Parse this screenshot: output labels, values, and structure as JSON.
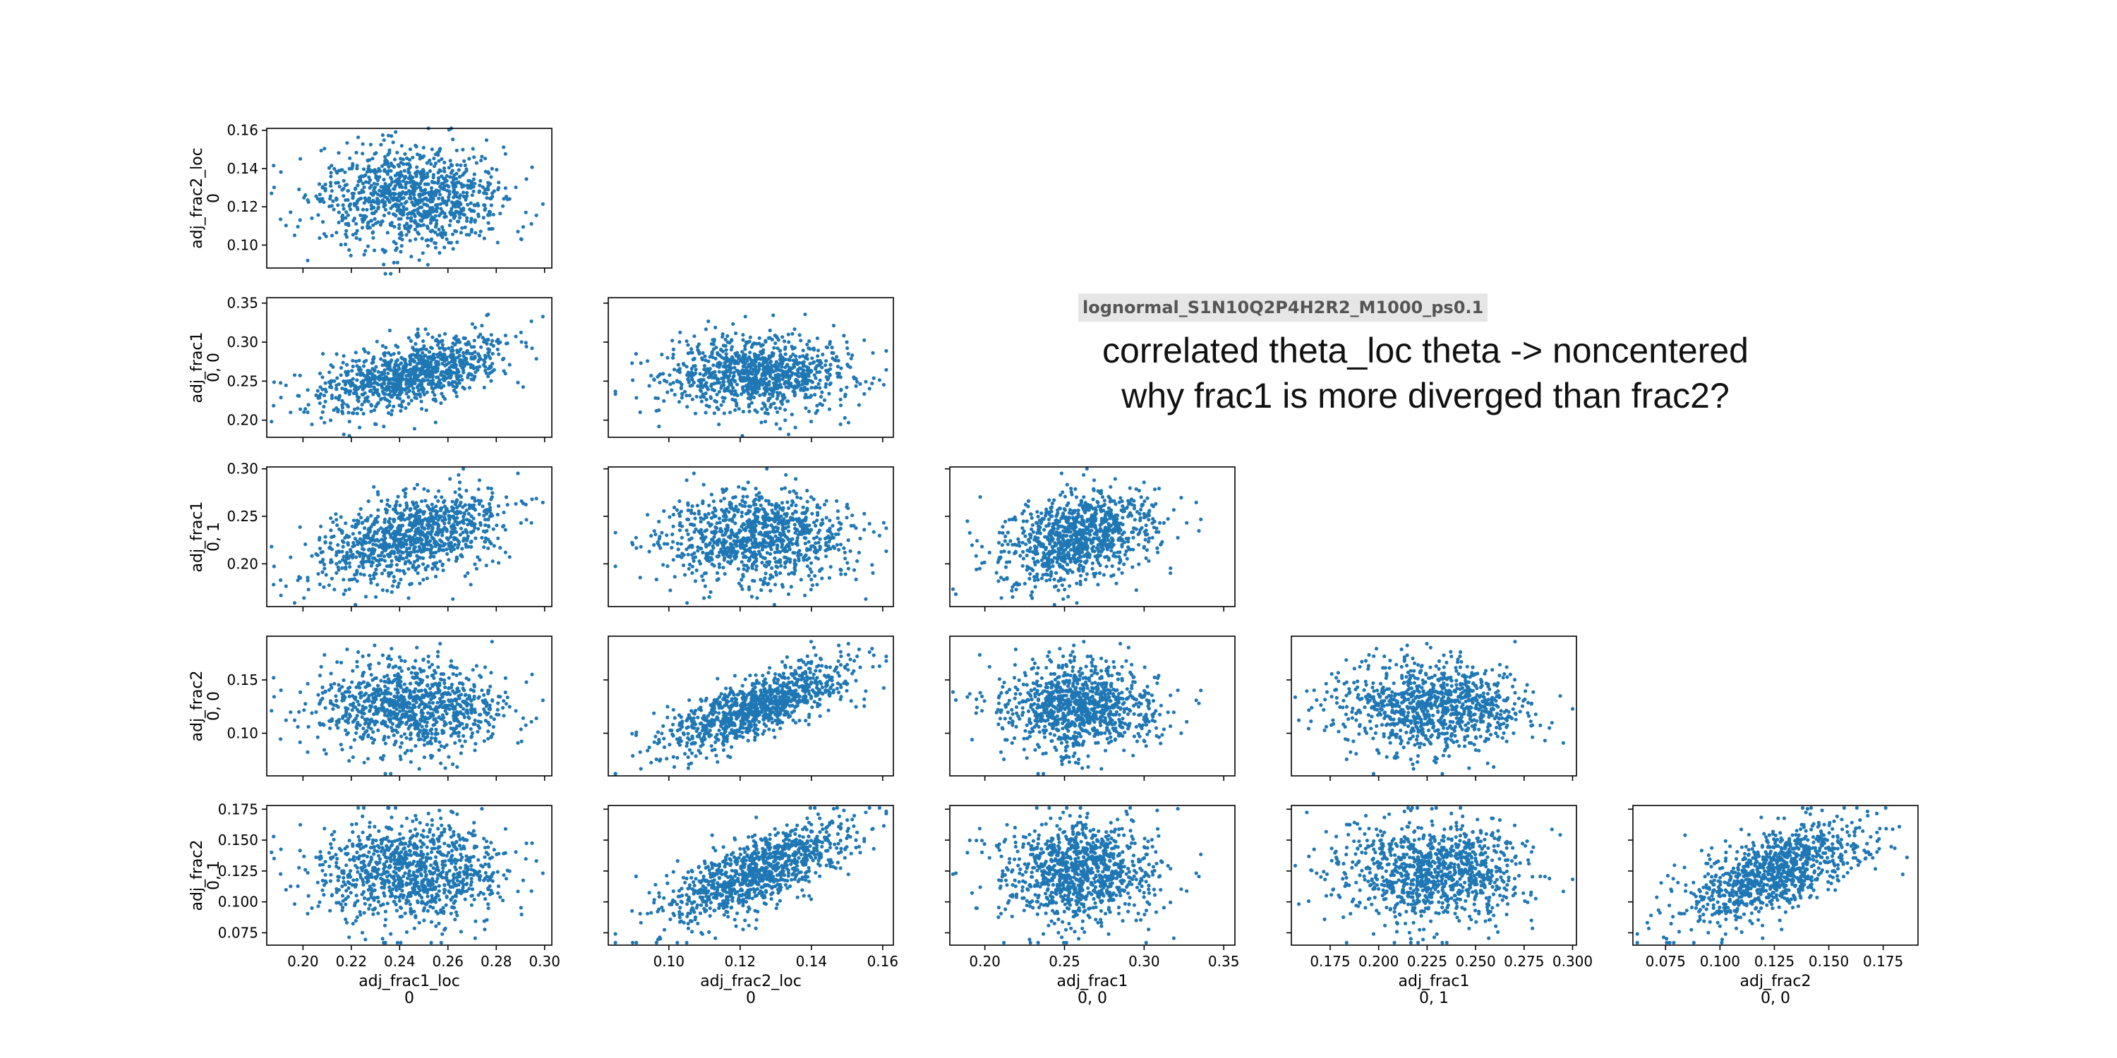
{
  "annotations": {
    "file_label": "lognormal_S1N10Q2P4H2R2_M1000_ps0.1",
    "note_line1": "correlated theta_loc theta -> noncentered",
    "note_line2": "why frac1 is more diverged than frac2?"
  },
  "colors": {
    "points": "#1f77b4",
    "axes": "#000000"
  },
  "chart_data": {
    "type": "scatter",
    "layout": "pair-grid-lower-triangle",
    "n_points": 1000,
    "variables": [
      {
        "name": "adj_frac1_loc",
        "index": "0",
        "lim": [
          0.185,
          0.303
        ],
        "ticks": [
          0.2,
          0.22,
          0.24,
          0.26,
          0.28,
          0.3
        ],
        "tick_labels": [
          "0.20",
          "0.22",
          "0.24",
          "0.26",
          "0.28",
          "0.30"
        ],
        "mean": 0.245,
        "sd": 0.019
      },
      {
        "name": "adj_frac2_loc",
        "index": "0",
        "lim": [
          0.083,
          0.163
        ],
        "ticks": [
          0.1,
          0.12,
          0.14,
          0.16
        ],
        "tick_labels": [
          "0.10",
          "0.12",
          "0.14",
          "0.16"
        ],
        "mean": 0.125,
        "sd": 0.013
      },
      {
        "name": "adj_frac1",
        "index": "0, 0",
        "lim": [
          0.178,
          0.357
        ],
        "ticks": [
          0.2,
          0.25,
          0.3,
          0.35
        ],
        "tick_labels": [
          "0.20",
          "0.25",
          "0.30",
          "0.35"
        ],
        "mean": 0.258,
        "sd": 0.024
      },
      {
        "name": "adj_frac1",
        "index": "0, 1",
        "lim": [
          0.155,
          0.302
        ],
        "ticks": [
          0.175,
          0.2,
          0.225,
          0.25,
          0.275,
          0.3
        ],
        "tick_labels": [
          "0.175",
          "0.200",
          "0.225",
          "0.250",
          "0.275",
          "0.300"
        ],
        "mean": 0.228,
        "sd": 0.024
      },
      {
        "name": "adj_frac2",
        "index": "0, 0",
        "lim": [
          0.06,
          0.191
        ],
        "ticks": [
          0.075,
          0.1,
          0.125,
          0.15,
          0.175
        ],
        "tick_labels": [
          "0.075",
          "0.100",
          "0.125",
          "0.150",
          "0.175"
        ],
        "mean": 0.125,
        "sd": 0.02
      },
      {
        "name": "adj_frac2",
        "index": "0, 1",
        "lim": [
          0.065,
          0.178
        ],
        "ticks": [
          0.075,
          0.1,
          0.125,
          0.15,
          0.175
        ],
        "tick_labels": [
          "0.075",
          "0.100",
          "0.125",
          "0.150",
          "0.175"
        ],
        "mean": 0.124,
        "sd": 0.02
      }
    ],
    "row_ylims": [
      {
        "var": 1,
        "lim": [
          0.088,
          0.161
        ],
        "ticks": [
          0.1,
          0.12,
          0.14,
          0.16
        ],
        "tick_labels": [
          "0.10",
          "0.12",
          "0.14",
          "0.16"
        ]
      },
      {
        "var": 2,
        "lim": [
          0.178,
          0.357
        ],
        "ticks": [
          0.2,
          0.25,
          0.3,
          0.35
        ],
        "tick_labels": [
          "0.20",
          "0.25",
          "0.30",
          "0.35"
        ]
      },
      {
        "var": 3,
        "lim": [
          0.155,
          0.302
        ],
        "ticks": [
          0.2,
          0.25,
          0.3
        ],
        "tick_labels": [
          "0.20",
          "0.25",
          "0.30"
        ]
      },
      {
        "var": 4,
        "lim": [
          0.06,
          0.191
        ],
        "ticks": [
          0.1,
          0.15
        ],
        "tick_labels": [
          "0.10",
          "0.15"
        ]
      },
      {
        "var": 5,
        "lim": [
          0.065,
          0.178
        ],
        "ticks": [
          0.075,
          0.1,
          0.125,
          0.15,
          0.175
        ],
        "tick_labels": [
          "0.075",
          "0.100",
          "0.125",
          "0.150",
          "0.175"
        ]
      }
    ],
    "pairs": [
      {
        "row": 0,
        "col": 0,
        "x": 0,
        "y": 1,
        "corr": 0.0
      },
      {
        "row": 1,
        "col": 0,
        "x": 0,
        "y": 2,
        "corr": 0.55
      },
      {
        "row": 1,
        "col": 1,
        "x": 1,
        "y": 2,
        "corr": -0.05
      },
      {
        "row": 2,
        "col": 0,
        "x": 0,
        "y": 3,
        "corr": 0.5
      },
      {
        "row": 2,
        "col": 1,
        "x": 1,
        "y": 3,
        "corr": 0.0
      },
      {
        "row": 2,
        "col": 2,
        "x": 2,
        "y": 3,
        "corr": 0.3
      },
      {
        "row": 3,
        "col": 0,
        "x": 0,
        "y": 4,
        "corr": 0.0
      },
      {
        "row": 3,
        "col": 1,
        "x": 1,
        "y": 4,
        "corr": 0.75
      },
      {
        "row": 3,
        "col": 2,
        "x": 2,
        "y": 4,
        "corr": 0.0
      },
      {
        "row": 3,
        "col": 3,
        "x": 3,
        "y": 4,
        "corr": 0.0
      },
      {
        "row": 4,
        "col": 0,
        "x": 0,
        "y": 5,
        "corr": -0.05
      },
      {
        "row": 4,
        "col": 1,
        "x": 1,
        "y": 5,
        "corr": 0.7
      },
      {
        "row": 4,
        "col": 2,
        "x": 2,
        "y": 5,
        "corr": 0.0
      },
      {
        "row": 4,
        "col": 3,
        "x": 3,
        "y": 5,
        "corr": 0.0
      },
      {
        "row": 4,
        "col": 4,
        "x": 4,
        "y": 5,
        "corr": 0.5
      }
    ]
  }
}
